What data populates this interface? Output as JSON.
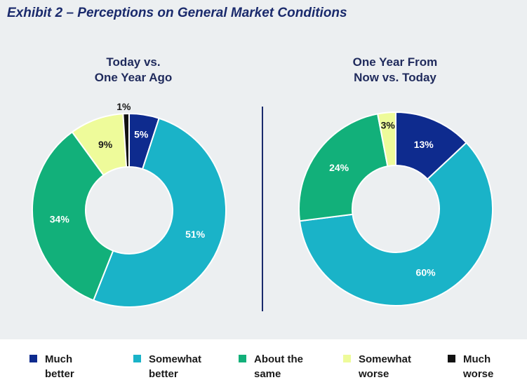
{
  "title": "Exhibit 2 – Perceptions on General Market Conditions",
  "chart_data": [
    {
      "type": "pie",
      "donut": true,
      "title_lines": [
        "Today vs.",
        "One Year Ago"
      ],
      "categories": [
        "Much better",
        "Somewhat better",
        "About the same",
        "Somewhat worse",
        "Much worse"
      ],
      "values": [
        5,
        51,
        34,
        9,
        1
      ],
      "labels": [
        "5%",
        "51%",
        "34%",
        "9%",
        "1%"
      ]
    },
    {
      "type": "pie",
      "donut": true,
      "title_lines": [
        "One Year From",
        "Now vs. Today"
      ],
      "categories": [
        "Much better",
        "Somewhat better",
        "About the same",
        "Somewhat worse"
      ],
      "values": [
        13,
        60,
        24,
        3
      ],
      "labels": [
        "13%",
        "60%",
        "24%",
        "3%"
      ]
    }
  ],
  "colors": {
    "Much better": "#0e2b8e",
    "Somewhat better": "#1ab3c8",
    "About the same": "#12b07a",
    "Somewhat worse": "#eefb9a",
    "Much worse": "#111111"
  },
  "label_colors": {
    "Much better": "#ffffff",
    "Somewhat better": "#ffffff",
    "About the same": "#ffffff",
    "Somewhat worse": "#1a1a1a",
    "Much worse": "#1a1a1a"
  },
  "legend": [
    {
      "name": "Much better",
      "lines": [
        "Much",
        "better"
      ]
    },
    {
      "name": "Somewhat better",
      "lines": [
        "Somewhat",
        "better"
      ]
    },
    {
      "name": "About the same",
      "lines": [
        "About the",
        "same"
      ]
    },
    {
      "name": "Somewhat worse",
      "lines": [
        "Somewhat",
        "worse"
      ]
    },
    {
      "name": "Much worse",
      "lines": [
        "Much",
        "worse"
      ]
    }
  ]
}
